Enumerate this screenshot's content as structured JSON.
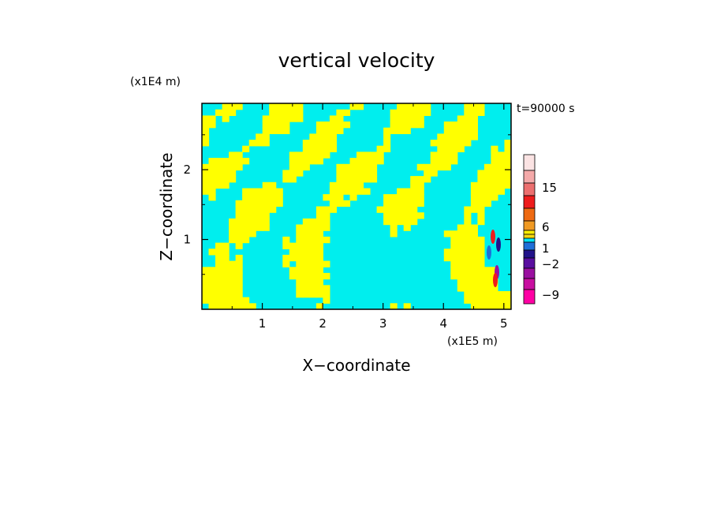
{
  "chart_data": {
    "type": "heatmap",
    "title": "vertical velocity",
    "xlabel": "X−coordinate",
    "ylabel": "Z−coordinate",
    "x_scale_label": "(x1E5 m)",
    "y_scale_label": "(x1E4 m)",
    "time_label": "t=90000 s",
    "xlim": [
      0,
      5.12
    ],
    "ylim": [
      0,
      2.95
    ],
    "x_ticks": [
      "1",
      "2",
      "3",
      "4",
      "5"
    ],
    "y_ticks": [
      "1",
      "2"
    ],
    "colorbar": {
      "tick_labels": [
        "15",
        "6",
        "1",
        "−2",
        "−9"
      ],
      "levels_top_to_bottom": [
        {
          "color": "#fbe3e3"
        },
        {
          "color": "#f4a9a9"
        },
        {
          "color": "#ec6f6f"
        },
        {
          "color": "#ee1c1c"
        },
        {
          "color": "#ee6a12"
        },
        {
          "color": "#f09a24"
        },
        {
          "color": "#ffee00"
        },
        {
          "color": "#f4d70f"
        },
        {
          "color": "#00e5f5"
        },
        {
          "color": "#1f6fd8"
        },
        {
          "color": "#22138a"
        },
        {
          "color": "#5a0fa0"
        },
        {
          "color": "#9a10a0"
        },
        {
          "color": "#c80fa0"
        },
        {
          "color": "#ff00a4"
        }
      ]
    },
    "field_colors": {
      "positive": "#ffff00",
      "negative": "#00eeee"
    }
  }
}
